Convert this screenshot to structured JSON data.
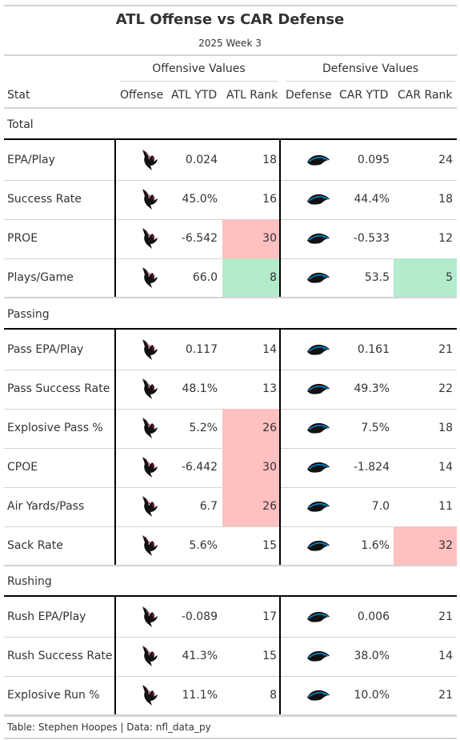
{
  "title": "ATL Offense vs CAR Defense",
  "subtitle": "2025 Week 3",
  "spanners": {
    "offense": "Offensive Values",
    "defense": "Defensive Values"
  },
  "columns": [
    "Stat",
    "Offense",
    "ATL YTD",
    "ATL Rank",
    "Defense",
    "CAR YTD",
    "CAR Rank"
  ],
  "colors": {
    "bad_rank": "#ffc0c0",
    "good_rank": "#b3ebcb",
    "atl_red": "#a71930",
    "car_blue": "#0085ca"
  },
  "icons": {
    "offense": "falcons-logo-icon",
    "defense": "panthers-logo-icon"
  },
  "groups": [
    {
      "label": "Total",
      "rows": [
        {
          "stat": "EPA/Play",
          "atl_ytd": "0.024",
          "atl_rank": "18",
          "car_ytd": "0.095",
          "car_rank": "24",
          "atl_shade": "",
          "car_shade": ""
        },
        {
          "stat": "Success Rate",
          "atl_ytd": "45.0%",
          "atl_rank": "16",
          "car_ytd": "44.4%",
          "car_rank": "18",
          "atl_shade": "",
          "car_shade": ""
        },
        {
          "stat": "PROE",
          "atl_ytd": "-6.542",
          "atl_rank": "30",
          "car_ytd": "-0.533",
          "car_rank": "12",
          "atl_shade": "bad",
          "car_shade": ""
        },
        {
          "stat": "Plays/Game",
          "atl_ytd": "66.0",
          "atl_rank": "8",
          "car_ytd": "53.5",
          "car_rank": "5",
          "atl_shade": "good",
          "car_shade": "good"
        }
      ]
    },
    {
      "label": "Passing",
      "rows": [
        {
          "stat": "Pass EPA/Play",
          "atl_ytd": "0.117",
          "atl_rank": "14",
          "car_ytd": "0.161",
          "car_rank": "21",
          "atl_shade": "",
          "car_shade": ""
        },
        {
          "stat": "Pass Success Rate",
          "atl_ytd": "48.1%",
          "atl_rank": "13",
          "car_ytd": "49.3%",
          "car_rank": "22",
          "atl_shade": "",
          "car_shade": ""
        },
        {
          "stat": "Explosive Pass %",
          "atl_ytd": "5.2%",
          "atl_rank": "26",
          "car_ytd": "7.5%",
          "car_rank": "18",
          "atl_shade": "bad",
          "car_shade": ""
        },
        {
          "stat": "CPOE",
          "atl_ytd": "-6.442",
          "atl_rank": "30",
          "car_ytd": "-1.824",
          "car_rank": "14",
          "atl_shade": "bad",
          "car_shade": ""
        },
        {
          "stat": "Air Yards/Pass",
          "atl_ytd": "6.7",
          "atl_rank": "26",
          "car_ytd": "7.0",
          "car_rank": "11",
          "atl_shade": "bad",
          "car_shade": ""
        },
        {
          "stat": "Sack Rate",
          "atl_ytd": "5.6%",
          "atl_rank": "15",
          "car_ytd": "1.6%",
          "car_rank": "32",
          "atl_shade": "",
          "car_shade": "bad"
        }
      ]
    },
    {
      "label": "Rushing",
      "rows": [
        {
          "stat": "Rush EPA/Play",
          "atl_ytd": "-0.089",
          "atl_rank": "17",
          "car_ytd": "0.006",
          "car_rank": "21",
          "atl_shade": "",
          "car_shade": ""
        },
        {
          "stat": "Rush Success Rate",
          "atl_ytd": "41.3%",
          "atl_rank": "15",
          "car_ytd": "38.0%",
          "car_rank": "14",
          "atl_shade": "",
          "car_shade": ""
        },
        {
          "stat": "Explosive Run %",
          "atl_ytd": "11.1%",
          "atl_rank": "8",
          "car_ytd": "10.0%",
          "car_rank": "21",
          "atl_shade": "",
          "car_shade": ""
        }
      ]
    }
  ],
  "source_note": "Table: Stephen Hoopes | Data: nfl_data_py",
  "chart_data": {
    "type": "table",
    "title": "ATL Offense vs CAR Defense",
    "subtitle": "2025 Week 3",
    "columns": [
      "Stat",
      "Offense",
      "ATL YTD",
      "ATL Rank",
      "Defense",
      "CAR YTD",
      "CAR Rank"
    ],
    "rows": [
      [
        "EPA/Play",
        "",
        "0.024",
        18,
        "",
        "0.095",
        24
      ],
      [
        "Success Rate",
        "",
        "45.0%",
        16,
        "",
        "44.4%",
        18
      ],
      [
        "PROE",
        "",
        "-6.542",
        30,
        "",
        "-0.533",
        12
      ],
      [
        "Plays/Game",
        "",
        "66.0",
        8,
        "",
        "53.5",
        5
      ],
      [
        "Pass EPA/Play",
        "",
        "0.117",
        14,
        "",
        "0.161",
        21
      ],
      [
        "Pass Success Rate",
        "",
        "48.1%",
        13,
        "",
        "49.3%",
        22
      ],
      [
        "Explosive Pass %",
        "",
        "5.2%",
        26,
        "",
        "7.5%",
        18
      ],
      [
        "CPOE",
        "",
        "-6.442",
        30,
        "",
        "-1.824",
        14
      ],
      [
        "Air Yards/Pass",
        "",
        "6.7",
        26,
        "",
        "7.0",
        11
      ],
      [
        "Sack Rate",
        "",
        "5.6%",
        15,
        "",
        "1.6%",
        32
      ],
      [
        "Rush EPA/Play",
        "",
        "-0.089",
        17,
        "",
        "0.006",
        21
      ],
      [
        "Rush Success Rate",
        "",
        "41.3%",
        15,
        "",
        "38.0%",
        14
      ],
      [
        "Explosive Run %",
        "",
        "11.1%",
        8,
        "",
        "10.0%",
        21
      ]
    ]
  }
}
